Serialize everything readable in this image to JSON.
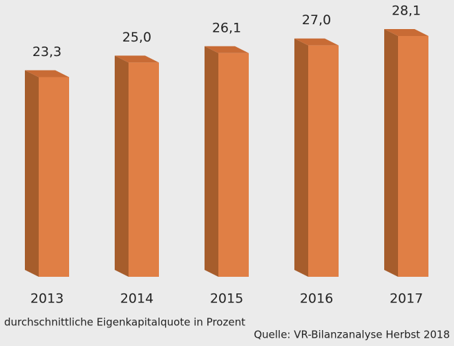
{
  "chart_data": {
    "type": "bar",
    "categories": [
      "2013",
      "2014",
      "2015",
      "2016",
      "2017"
    ],
    "values": [
      23.3,
      25.0,
      26.1,
      27.0,
      28.1
    ],
    "value_labels": [
      "23,3",
      "25,0",
      "26,1",
      "27,0",
      "28,1"
    ],
    "color": "#e07f45",
    "side_color": "#a65d2c",
    "top_color": "#c86b35",
    "caption": "durchschnittliche Eigenkapitalquote in Prozent",
    "source": "Quelle: VR-Bilanzanalyse Herbst 2018"
  }
}
